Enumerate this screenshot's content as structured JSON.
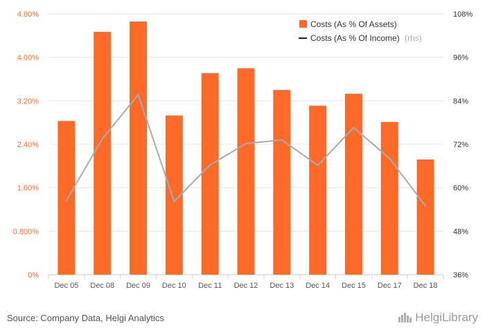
{
  "chart_data": {
    "type": "bar",
    "categories": [
      "Dec 05",
      "Dec 08",
      "Dec 09",
      "Dec 10",
      "Dec 11",
      "Dec 12",
      "Dec 13",
      "Dec 14",
      "Dec 15",
      "Dec 17",
      "Dec 18"
    ],
    "series": [
      {
        "name": "Costs (As % Of Assets)",
        "type": "bar",
        "axis": "left",
        "color": "#ff6a2b",
        "values": [
          2.83,
          4.47,
          4.66,
          2.93,
          3.71,
          3.8,
          3.4,
          3.11,
          3.33,
          2.81,
          2.12
        ]
      },
      {
        "name": "Costs (As % Of Income)",
        "legend_suffix": "(rhs)",
        "type": "line",
        "axis": "right",
        "color": "#aaaaaa",
        "values": [
          56.5,
          73.5,
          85.7,
          56.2,
          66.3,
          72.2,
          73.2,
          66.2,
          76.6,
          68.1,
          55.0
        ]
      }
    ],
    "yleft": {
      "ylim": [
        0,
        4.8
      ],
      "ticks": [
        "0%",
        "0.800%",
        "1.60%",
        "2.40%",
        "3.20%",
        "4.00%",
        "4.80%"
      ]
    },
    "yright": {
      "ylim": [
        36,
        108
      ],
      "ticks": [
        "36%",
        "48%",
        "60%",
        "72%",
        "84%",
        "96%",
        "108%"
      ]
    },
    "grid": true,
    "legend_position": "top-right"
  },
  "footer": {
    "source": "Source: Company Data, Helgi Analytics",
    "logo": "HelgiLibrary"
  }
}
